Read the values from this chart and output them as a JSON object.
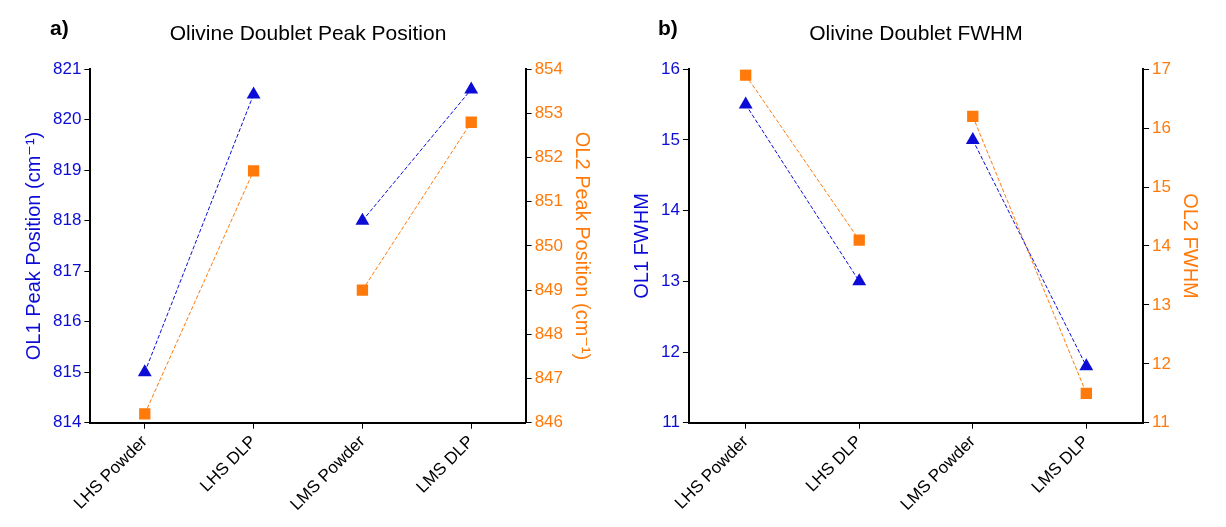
{
  "chart_data": [
    {
      "type": "line",
      "title": "Olivine Doublet Peak Position",
      "annotations": [
        "a)"
      ],
      "categories": [
        "LHS Powder",
        "LHS DLP",
        "LMS Powder",
        "LMS DLP"
      ],
      "ylabel": "OL1 Peak Position (cm⁻¹)",
      "y2label": "OL2 Peak Position (cm⁻¹)",
      "ylim": [
        814,
        821
      ],
      "yticks": [
        814,
        815,
        816,
        817,
        818,
        819,
        820,
        821
      ],
      "y2lim": [
        846,
        854
      ],
      "y2ticks": [
        846,
        847,
        848,
        849,
        850,
        851,
        852,
        853,
        854
      ],
      "line_style": "dashed",
      "grid": false,
      "legend": false,
      "series": [
        {
          "color": "#0c0cd6",
          "marker": "triangle",
          "values": [
            815.0,
            820.5,
            null,
            null
          ]
        },
        {
          "color": "#0c0cd6",
          "marker": "triangle",
          "values": [
            null,
            null,
            818.0,
            820.6
          ]
        },
        {
          "color": "#ff7a0a",
          "marker": "square",
          "axis": "y2",
          "values": [
            846.2,
            851.7,
            null,
            null
          ]
        },
        {
          "color": "#ff7a0a",
          "marker": "square",
          "axis": "y2",
          "values": [
            null,
            null,
            849.0,
            852.8
          ]
        }
      ]
    },
    {
      "type": "line",
      "title": "Olivine Doublet FWHM",
      "annotations": [
        "b)"
      ],
      "categories": [
        "LHS Powder",
        "LHS DLP",
        "LMS Powder",
        "LMS DLP"
      ],
      "ylabel": "OL1 FWHM",
      "y2label": "OL2 FWHM",
      "ylim": [
        11,
        16
      ],
      "yticks": [
        11,
        12,
        13,
        14,
        15,
        16
      ],
      "y2lim": [
        11,
        17
      ],
      "y2ticks": [
        11,
        12,
        13,
        14,
        15,
        16,
        17
      ],
      "line_style": "dashed",
      "grid": false,
      "legend": false,
      "series": [
        {
          "color": "#0c0cd6",
          "marker": "triangle",
          "values": [
            15.5,
            13.0,
            null,
            null
          ]
        },
        {
          "color": "#0c0cd6",
          "marker": "triangle",
          "values": [
            null,
            null,
            15.0,
            11.8
          ]
        },
        {
          "color": "#ff7a0a",
          "marker": "square",
          "axis": "y2",
          "values": [
            16.9,
            14.1,
            null,
            null
          ]
        },
        {
          "color": "#ff7a0a",
          "marker": "square",
          "axis": "y2",
          "values": [
            null,
            null,
            16.2,
            11.5
          ]
        }
      ]
    }
  ]
}
